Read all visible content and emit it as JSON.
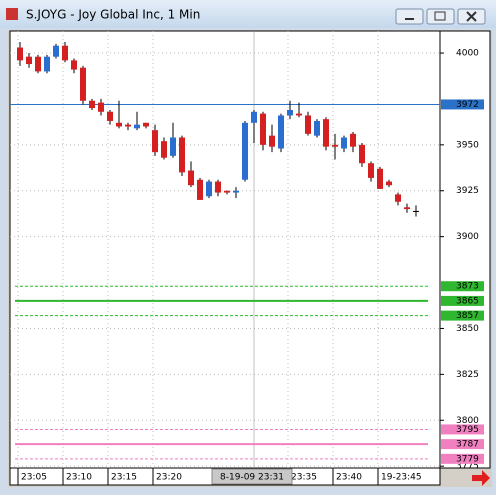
{
  "window_title": "S.JOYG - Joy Global Inc, 1 Min",
  "chart_data": {
    "type": "candlestick",
    "categories": [
      "23:05",
      null,
      null,
      null,
      null,
      "23:10",
      null,
      null,
      null,
      null,
      "23:15",
      null,
      null,
      null,
      null,
      "23:20",
      null,
      null,
      null,
      null,
      null,
      null,
      null,
      null,
      null,
      null,
      null,
      null,
      null,
      null,
      "23:35",
      null,
      null,
      null,
      null,
      "23:40",
      null,
      null,
      null,
      null,
      "19-23:45",
      null,
      null,
      null,
      null
    ],
    "crosshair": {
      "index": 26,
      "label": "8-19-09 23:31"
    },
    "open": [
      4003,
      3998,
      3998,
      3990,
      3998,
      4004,
      3996,
      3992,
      3974,
      3973,
      3968,
      3962,
      3961,
      3959,
      3962,
      3958,
      3952,
      3944,
      3954,
      3936,
      3931,
      3922,
      3930,
      3925,
      3924,
      3931,
      3962,
      3967,
      3955,
      3948,
      3966,
      3967,
      3966,
      3955,
      3964,
      3950,
      3948,
      3956,
      3950,
      3940,
      3937,
      3930,
      3923,
      3916,
      3914
    ],
    "high": [
      4006,
      4000,
      3999,
      3999,
      4005,
      4006,
      3997,
      3993,
      3975,
      3975,
      3969,
      3974,
      3962,
      3968,
      3962,
      3961,
      3954,
      3962,
      3955,
      3941,
      3932,
      3931,
      3931,
      3925,
      3927,
      3963,
      3969,
      3968,
      3961,
      3967,
      3974,
      3973,
      3968,
      3964,
      3965,
      3956,
      3955,
      3957,
      3951,
      3941,
      3938,
      3931,
      3924,
      3918,
      3917
    ],
    "low": [
      3993,
      3992,
      3989,
      3989,
      3997,
      3995,
      3989,
      3972,
      3969,
      3966,
      3961,
      3959,
      3958,
      3958,
      3959,
      3944,
      3942,
      3943,
      3933,
      3927,
      3920,
      3921,
      3922,
      3923,
      3921,
      3930,
      3951,
      3947,
      3946,
      3946,
      3964,
      3965,
      3955,
      3954,
      3947,
      3942,
      3946,
      3946,
      3938,
      3930,
      3926,
      3927,
      3917,
      3913,
      3911
    ],
    "close": [
      3996,
      3994,
      3990,
      3998,
      4004,
      3996,
      3991,
      3974,
      3970,
      3968,
      3963,
      3960,
      3960,
      3961,
      3960,
      3946,
      3943,
      3954,
      3935,
      3928,
      3920,
      3930,
      3924,
      3924,
      3925,
      3962,
      3968,
      3950,
      3949,
      3966,
      3969,
      3966,
      3956,
      3963,
      3949,
      3949,
      3954,
      3949,
      3940,
      3932,
      3926,
      3928,
      3919,
      3915,
      3914
    ],
    "up_color": "#2a6fd0",
    "down_color": "#d42020",
    "ylim": [
      3774,
      4012
    ],
    "yticks": [
      4000,
      3950,
      3925,
      3900,
      3850,
      3825,
      3800,
      3775
    ],
    "grid": true,
    "levels": [
      {
        "value": 3972,
        "color": "#2a72c8",
        "style": "solid"
      },
      {
        "value": 3873,
        "color": "#2fb82f",
        "style": "dashed"
      },
      {
        "value": 3865,
        "color": "#2fb82f",
        "style": "solid"
      },
      {
        "value": 3857,
        "color": "#2fb82f",
        "style": "dashed"
      },
      {
        "value": 3795,
        "color": "#f080c0",
        "style": "dashed"
      },
      {
        "value": 3787,
        "color": "#f080c0",
        "style": "solid"
      },
      {
        "value": 3779,
        "color": "#f080c0",
        "style": "dashed"
      }
    ]
  }
}
